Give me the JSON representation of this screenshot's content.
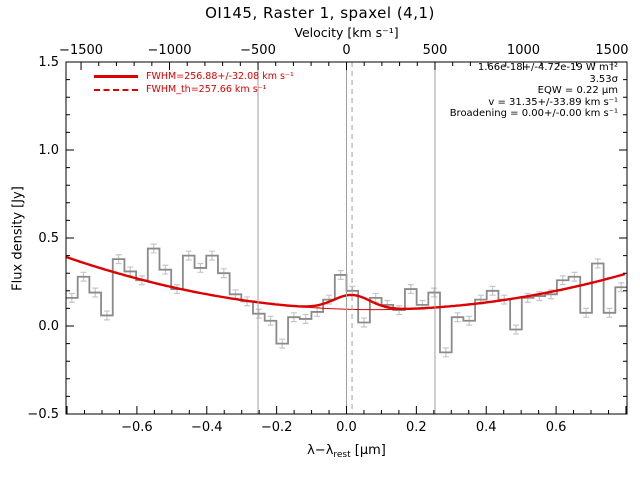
{
  "title": "OI145, Raster 1, spaxel (4,1)",
  "axes": {
    "top_label": "Velocity [km s⁻¹]",
    "y_label": "Flux density [Jy]",
    "x_label": {
      "main": "λ−λ",
      "sub": "rest",
      "unit": " [μm]"
    }
  },
  "legend": {
    "items": [
      {
        "style": "solid",
        "label": "FWHM=256.88+/-32.08 km s⁻¹"
      },
      {
        "style": "dashed",
        "label": "FWHM_th=257.66 km s⁻¹"
      }
    ]
  },
  "annotations": {
    "lines": [
      "1.66e-18+/-4.72e-19 W m⁻²",
      "3.53σ",
      "EQW = 0.22 μm",
      "v = 31.35+/-33.89 km s⁻¹",
      "Broadening = 0.00+/-0.00 km s⁻¹"
    ]
  },
  "colors": {
    "fit_red": "#dd0000",
    "spectrum_gray": "#8a8a8a",
    "error_bar_gray": "#c6c6c6",
    "marker_line_gray": "#a0a0a0",
    "frame_black": "#000000",
    "background": "#ffffff"
  },
  "chart_data": {
    "type": "line",
    "title": "OI145, Raster 1, spaxel (4,1)",
    "xlabel": "λ−λ_rest [μm]",
    "xlabel_top": "Velocity [km s⁻¹]",
    "ylabel": "Flux density [Jy]",
    "xlim_um": [
      -0.803,
      0.803
    ],
    "vlim_kms": [
      -1585,
      1585
    ],
    "ylim_jy": [
      -0.5,
      1.5
    ],
    "grid": false,
    "legend_position": "top-left",
    "x_ticks_um": {
      "values": [
        -0.6,
        -0.4,
        -0.2,
        0.0,
        0.2,
        0.4,
        0.6
      ],
      "labels": [
        "−0.6",
        "−0.4",
        "−0.2",
        "0.0",
        "0.2",
        "0.4",
        "0.6"
      ],
      "minor_step": 0.05
    },
    "v_ticks_kms": {
      "values": [
        -1500,
        -1000,
        -500,
        0,
        500,
        1000,
        1500
      ],
      "labels": [
        "−1500",
        "−1000",
        "−500",
        "0",
        "500",
        "1000",
        "1500"
      ],
      "minor_step": 100
    },
    "y_ticks_jy": {
      "values": [
        1.5,
        1.0,
        0.5,
        0.0,
        -0.5
      ],
      "labels": [
        "1.5",
        "1.0",
        "0.5",
        "0.0",
        "−0.5"
      ],
      "minor_step": 0.1
    },
    "spectrum_histogram": {
      "lambda_start_um": -0.803,
      "bin_width_um": 0.033458,
      "flux_err_jy": 0.025,
      "flux_jy": [
        0.16,
        0.28,
        0.19,
        0.06,
        0.38,
        0.31,
        0.26,
        0.44,
        0.32,
        0.21,
        0.4,
        0.33,
        0.4,
        0.3,
        0.18,
        0.14,
        0.07,
        0.03,
        -0.1,
        0.05,
        0.04,
        0.08,
        0.15,
        0.29,
        0.2,
        0.02,
        0.16,
        0.12,
        0.09,
        0.21,
        0.12,
        0.19,
        -0.15,
        0.05,
        0.03,
        0.15,
        0.2,
        0.15,
        -0.02,
        0.16,
        0.17,
        0.18,
        0.26,
        0.28,
        0.075,
        0.355,
        0.075,
        0.22
      ]
    },
    "continuum_fit_quadratic": {
      "min_flux_jy": 0.093,
      "min_lambda_um": 0.075,
      "curvature": 0.388
    },
    "gaussian_line_fit": {
      "amplitude_jy": 0.082,
      "center_um": 0.015,
      "sigma_um": 0.053
    },
    "vlines": [
      {
        "v_kms": -500,
        "style": "solid"
      },
      {
        "v_kms": 0,
        "style": "solid"
      },
      {
        "v_kms": 31.35,
        "style": "dashed"
      },
      {
        "v_kms": 500,
        "style": "solid"
      }
    ]
  }
}
